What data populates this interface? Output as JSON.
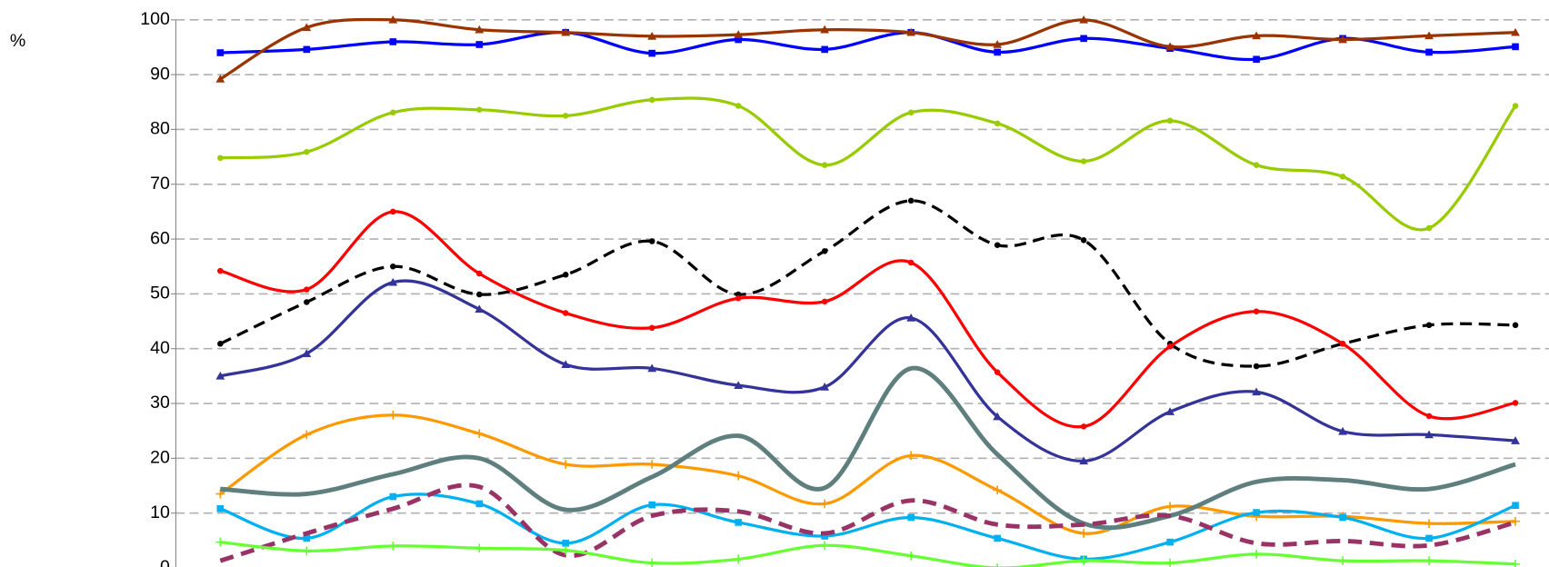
{
  "chart_data": {
    "type": "line",
    "ylabel": "%",
    "categories": [
      null,
      null,
      null,
      null,
      null,
      null,
      null,
      null,
      null,
      null,
      null,
      null,
      null,
      null,
      null,
      null
    ],
    "ylim": [
      0,
      100
    ],
    "yticks": [
      0,
      10,
      20,
      30,
      40,
      50,
      60,
      70,
      80,
      90,
      100
    ],
    "grid": true,
    "series": [
      {
        "color": "#0000ff",
        "marker": "square",
        "values": [
          94,
          94.6,
          96,
          95.5,
          97.7,
          93.9,
          96.4,
          94.6,
          97.7,
          94.1,
          96.6,
          94.8,
          92.8,
          96.6,
          94.1,
          95.1
        ]
      },
      {
        "color": "#993300",
        "marker": "triangle",
        "values": [
          89.2,
          98.6,
          100,
          98.2,
          97.7,
          97,
          97.3,
          98.2,
          97.7,
          95.5,
          100,
          95.1,
          97.1,
          96.4,
          97.1,
          97.7
        ]
      },
      {
        "color": "#99cc00",
        "marker": "circle",
        "values": [
          74.8,
          75.9,
          83.1,
          83.6,
          82.5,
          85.4,
          84.3,
          73.5,
          83.1,
          81.1,
          74.2,
          81.6,
          73.5,
          71.4,
          62,
          84.3
        ]
      },
      {
        "color": "#000000",
        "marker": "circle",
        "dashed": true,
        "values": [
          40.9,
          48.5,
          55,
          49.9,
          53.5,
          59.6,
          49.9,
          57.8,
          67,
          58.9,
          59.8,
          40.9,
          36.8,
          40.9,
          44.3,
          44.3
        ]
      },
      {
        "color": "#ff0000",
        "marker": "circle",
        "values": [
          54.2,
          50.8,
          65,
          53.7,
          46.5,
          43.8,
          49.2,
          48.6,
          55.7,
          35.7,
          25.8,
          40.4,
          46.8,
          40.9,
          27.7,
          30.1
        ]
      },
      {
        "color": "#333399",
        "marker": "triangle",
        "values": [
          35,
          39.1,
          52.1,
          47.2,
          37.1,
          36.4,
          33.3,
          33,
          45.6,
          27.6,
          19.5,
          28.5,
          32.1,
          24.9,
          24.3,
          23.2
        ]
      },
      {
        "color": "#ff9900",
        "marker": "plus",
        "values": [
          13.5,
          24.3,
          27.9,
          24.5,
          18.9,
          18.9,
          16.8,
          11.7,
          20.5,
          14.2,
          6.3,
          11.2,
          9.4,
          9.4,
          8.1,
          8.5
        ]
      },
      {
        "color": "#5f7f7f",
        "marker": "none",
        "thick": true,
        "values": [
          14.4,
          13.5,
          17.1,
          20,
          10.6,
          16.6,
          24.1,
          14.6,
          36.4,
          20.7,
          8.1,
          9.5,
          15.7,
          16,
          14.4,
          18.9
        ]
      },
      {
        "color": "#00b0f0",
        "marker": "square",
        "values": [
          10.8,
          5.4,
          13,
          11.7,
          4.5,
          11.5,
          8.3,
          5.8,
          9.2,
          5.4,
          1.6,
          4.7,
          10.1,
          9.2,
          5.4,
          11.4
        ]
      },
      {
        "color": "#993366",
        "marker": "none",
        "dashed": true,
        "thick": true,
        "values": [
          1.3,
          6.3,
          10.8,
          14.8,
          2.3,
          9.5,
          10.3,
          6.3,
          12.3,
          7.9,
          7.9,
          9.5,
          4.5,
          4.9,
          4.1,
          8.3
        ]
      },
      {
        "color": "#66ff33",
        "marker": "plus",
        "values": [
          4.7,
          3.1,
          4,
          3.6,
          3.2,
          0.9,
          1.6,
          4.1,
          2.2,
          0,
          1.3,
          0.9,
          2.5,
          1.3,
          1.3,
          0.7
        ]
      }
    ]
  }
}
